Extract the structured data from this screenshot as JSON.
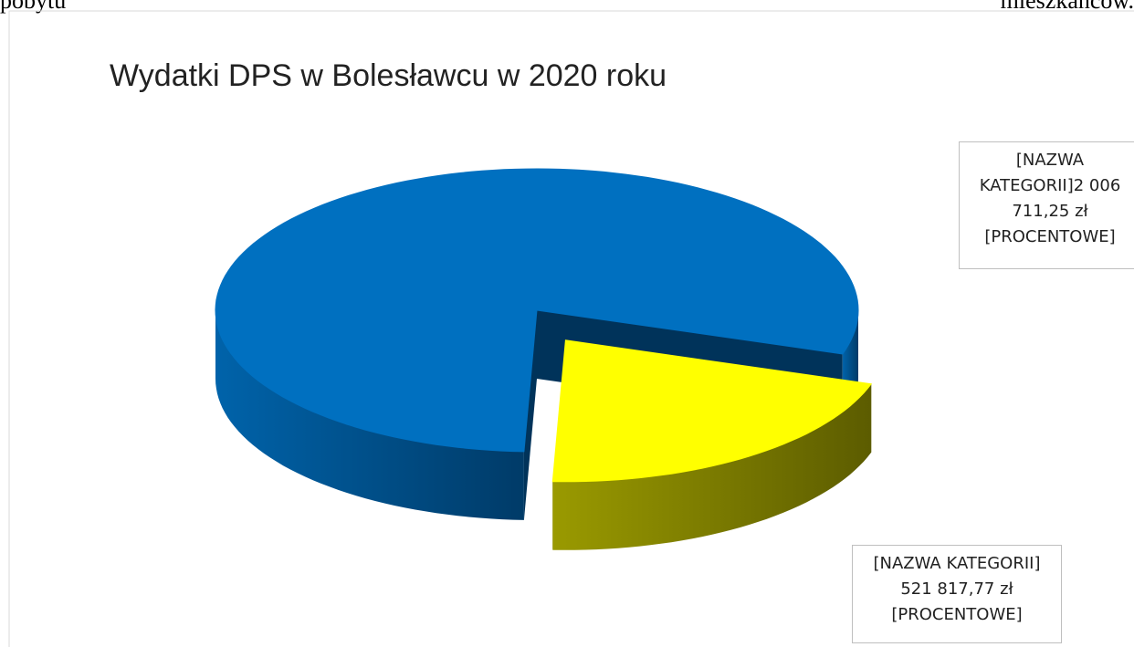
{
  "page_text": {
    "top_left": "pobytu",
    "top_right": "mieszkańców."
  },
  "chart_data": {
    "type": "pie",
    "title": "Wydatki DPS w Bolesławcu w 2020 roku",
    "categories": [
      "[NAZWA KATEGORII]",
      "[NAZWA KATEGORII]"
    ],
    "values": [
      2006711.25,
      521817.77
    ],
    "value_labels": [
      "2 006 711,25 zł",
      "521 817,77 zł"
    ],
    "percent_labels": [
      "[PROCENTOWE]",
      "[PROCENTOWE]"
    ],
    "colors": [
      "#0070c0",
      "#ffff00"
    ],
    "style": "3d",
    "exploded": [
      false,
      true
    ]
  }
}
